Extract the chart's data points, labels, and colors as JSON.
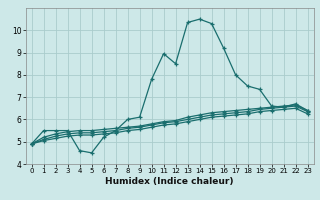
{
  "xlabel": "Humidex (Indice chaleur)",
  "bg_color": "#cde8e8",
  "grid_color": "#aacccc",
  "line_color": "#1a6e6e",
  "xlim": [
    -0.5,
    23.5
  ],
  "ylim": [
    4,
    11
  ],
  "yticks": [
    4,
    5,
    6,
    7,
    8,
    9,
    10
  ],
  "xticks": [
    0,
    1,
    2,
    3,
    4,
    5,
    6,
    7,
    8,
    9,
    10,
    11,
    12,
    13,
    14,
    15,
    16,
    17,
    18,
    19,
    20,
    21,
    22,
    23
  ],
  "series": [
    {
      "x": [
        0,
        1,
        2,
        3,
        4,
        5,
        6,
        7,
        8,
        9,
        10,
        11,
        12,
        13,
        14,
        15,
        16,
        17,
        18,
        19,
        20,
        21,
        22,
        23
      ],
      "y": [
        4.9,
        5.5,
        5.5,
        5.5,
        4.6,
        4.5,
        5.2,
        5.5,
        6.0,
        6.1,
        7.8,
        8.95,
        8.5,
        10.35,
        10.5,
        10.3,
        9.2,
        8.0,
        7.5,
        7.35,
        6.6,
        6.55,
        6.7,
        6.4
      ]
    },
    {
      "x": [
        0,
        1,
        2,
        3,
        4,
        5,
        6,
        7,
        8,
        9,
        10,
        11,
        12,
        13,
        14,
        15,
        16,
        17,
        18,
        19,
        20,
        21,
        22,
        23
      ],
      "y": [
        4.9,
        5.2,
        5.35,
        5.45,
        5.5,
        5.5,
        5.55,
        5.6,
        5.65,
        5.7,
        5.8,
        5.9,
        5.95,
        6.1,
        6.2,
        6.3,
        6.35,
        6.4,
        6.45,
        6.5,
        6.55,
        6.6,
        6.65,
        6.4
      ]
    },
    {
      "x": [
        0,
        1,
        2,
        3,
        4,
        5,
        6,
        7,
        8,
        9,
        10,
        11,
        12,
        13,
        14,
        15,
        16,
        17,
        18,
        19,
        20,
        21,
        22,
        23
      ],
      "y": [
        4.9,
        5.1,
        5.25,
        5.35,
        5.4,
        5.4,
        5.45,
        5.5,
        5.6,
        5.65,
        5.75,
        5.85,
        5.9,
        6.0,
        6.1,
        6.2,
        6.25,
        6.3,
        6.35,
        6.45,
        6.5,
        6.55,
        6.6,
        6.35
      ]
    },
    {
      "x": [
        0,
        1,
        2,
        3,
        4,
        5,
        6,
        7,
        8,
        9,
        10,
        11,
        12,
        13,
        14,
        15,
        16,
        17,
        18,
        19,
        20,
        21,
        22,
        23
      ],
      "y": [
        4.9,
        5.05,
        5.15,
        5.25,
        5.3,
        5.3,
        5.35,
        5.4,
        5.5,
        5.55,
        5.65,
        5.75,
        5.8,
        5.9,
        6.0,
        6.1,
        6.15,
        6.2,
        6.25,
        6.35,
        6.4,
        6.45,
        6.5,
        6.25
      ]
    }
  ]
}
